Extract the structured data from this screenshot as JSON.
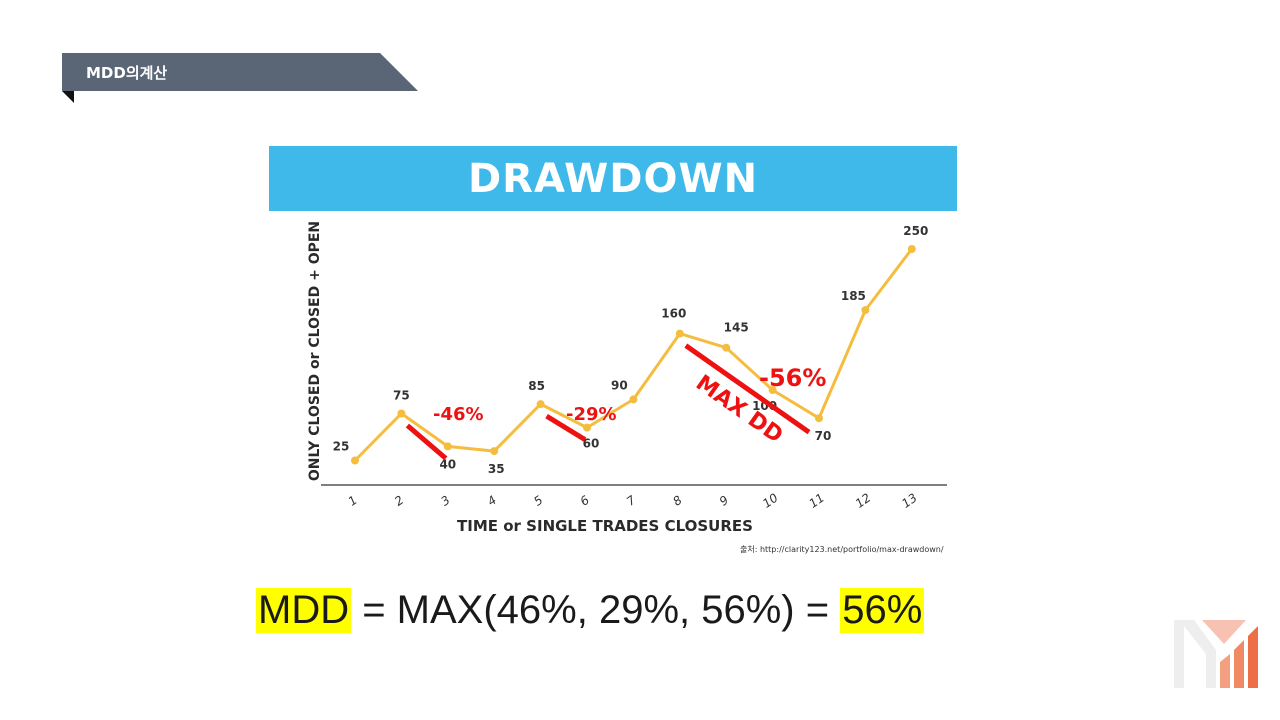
{
  "section": {
    "title": "MDD의계산"
  },
  "source_note": "출처: http://clarity123.net/portfolio/max-drawdown/",
  "formula": {
    "lhs": "MDD",
    "middle": " = MAX(46%, 29%, 56%) = ",
    "rhs": "56%"
  },
  "colors": {
    "tab": "#5a6575",
    "banner": "#3fb8ea",
    "line": "#f5bd3f",
    "drawdown": "#ee1111",
    "highlight": "#ffff00"
  },
  "chart_data": {
    "type": "line",
    "title": "DRAWDOWN",
    "xlabel": "TIME or SINGLE TRADES CLOSURES",
    "ylabel": "ONLY CLOSED or CLOSED + OPEN",
    "x": [
      1,
      2,
      3,
      4,
      5,
      6,
      7,
      8,
      9,
      10,
      11,
      12,
      13
    ],
    "values": [
      25,
      75,
      40,
      35,
      85,
      60,
      90,
      160,
      145,
      100,
      70,
      185,
      250
    ],
    "point_labels": [
      "25",
      "75",
      "40",
      "35",
      "85",
      "60",
      "90",
      "160",
      "145",
      "100",
      "70",
      "185",
      "250"
    ],
    "ylim": [
      0,
      280
    ],
    "grid": false,
    "annotations": [
      {
        "text": "-46%",
        "from": 2,
        "to": 3
      },
      {
        "text": "-29%",
        "from": 5,
        "to": 6
      },
      {
        "text": "-56%",
        "from": 8,
        "to": 11
      },
      {
        "text": "MAX DD",
        "from": 8,
        "to": 11
      }
    ]
  }
}
